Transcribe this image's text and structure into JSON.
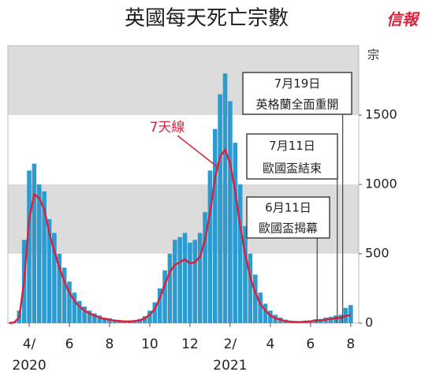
{
  "chart_data": {
    "type": "bar",
    "title": "英國每天死亡宗數",
    "logo": "信報",
    "y_unit": "宗",
    "x": [
      3,
      3.25,
      3.5,
      3.75,
      4,
      4.25,
      4.5,
      4.75,
      5,
      5.25,
      5.5,
      5.75,
      6,
      6.25,
      6.5,
      6.75,
      7,
      7.25,
      7.5,
      7.75,
      8,
      8.25,
      8.5,
      8.75,
      9,
      9.25,
      9.5,
      9.75,
      10,
      10.25,
      10.5,
      10.75,
      11,
      11.25,
      11.5,
      11.75,
      12,
      12.25,
      12.5,
      12.75,
      13,
      13.25,
      13.5,
      13.75,
      14,
      14.25,
      14.5,
      14.75,
      15,
      15.25,
      15.5,
      15.75,
      16,
      16.25,
      16.5,
      16.75,
      17,
      17.25,
      17.5,
      17.75,
      18,
      18.25,
      18.5,
      18.75,
      19,
      19.25,
      19.5,
      19.75,
      20
    ],
    "series": [
      {
        "type": "bar",
        "color": "#2e9bd0",
        "values": [
          2,
          10,
          90,
          600,
          1100,
          1150,
          1000,
          950,
          750,
          650,
          500,
          400,
          300,
          220,
          160,
          120,
          90,
          70,
          55,
          40,
          35,
          25,
          20,
          18,
          18,
          20,
          30,
          50,
          90,
          150,
          250,
          380,
          500,
          600,
          620,
          650,
          580,
          600,
          650,
          800,
          1100,
          1400,
          1650,
          1800,
          1600,
          1300,
          1000,
          700,
          500,
          350,
          220,
          140,
          90,
          60,
          40,
          25,
          18,
          15,
          14,
          18,
          20,
          28,
          30,
          40,
          45,
          55,
          60,
          110,
          130
        ]
      },
      {
        "type": "line",
        "name": "7天線",
        "color": "#d9223c",
        "values": [
          0,
          5,
          40,
          300,
          750,
          930,
          900,
          820,
          650,
          520,
          400,
          300,
          220,
          160,
          120,
          90,
          70,
          55,
          40,
          30,
          25,
          18,
          15,
          12,
          12,
          15,
          20,
          35,
          60,
          100,
          180,
          280,
          370,
          420,
          440,
          460,
          430,
          440,
          480,
          600,
          800,
          1050,
          1200,
          1250,
          1150,
          950,
          700,
          500,
          330,
          220,
          140,
          90,
          55,
          35,
          25,
          15,
          10,
          8,
          8,
          10,
          12,
          18,
          20,
          25,
          30,
          35,
          40,
          50,
          60
        ]
      }
    ],
    "xlim": [
      2.94,
      20.4
    ],
    "xticks": [
      {
        "value": 4,
        "label": "4/"
      },
      6,
      8,
      10,
      12,
      {
        "value": 14,
        "label": "2/"
      },
      {
        "value": 16,
        "label": "4"
      },
      {
        "value": 18,
        "label": "6"
      },
      {
        "value": 20,
        "label": "8"
      }
    ],
    "year_labels": [
      {
        "value": 4,
        "label": "2020"
      },
      {
        "value": 14,
        "label": "2021"
      }
    ],
    "ylim": [
      0,
      2000
    ],
    "yticks": [
      0,
      500,
      1000,
      1500
    ],
    "annotations": [
      {
        "lines": [
          "7月19日",
          "英格蘭全面重開"
        ],
        "x": 19.6
      },
      {
        "lines": [
          "7月11日",
          "歐國盃結束"
        ],
        "x": 19.33
      },
      {
        "lines": [
          "6月11日",
          "歐國盃揭幕"
        ],
        "x": 18.33
      }
    ]
  }
}
